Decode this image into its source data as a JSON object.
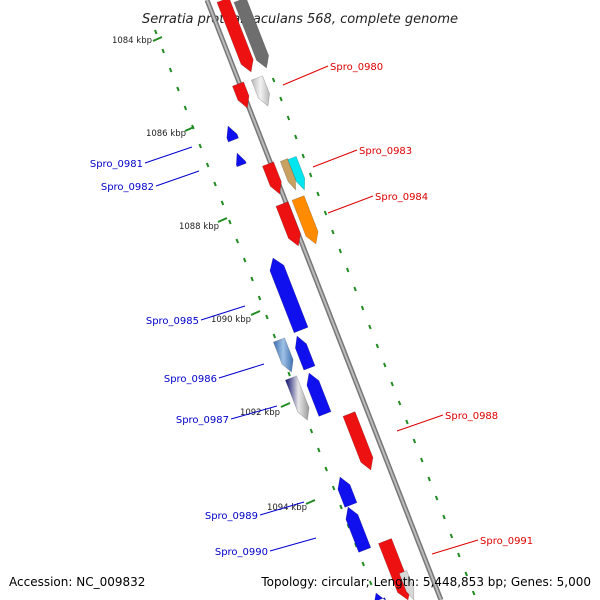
{
  "title": "Serratia proteamaculans 568, complete genome",
  "footer": {
    "accession": "Accession: NC_009832",
    "summary": "Topology: circular; Length: 5,448,853 bp; Genes: 5,000"
  },
  "colors": {
    "forward_label": "#dd0000",
    "reverse_label": "#0000cc",
    "backbone": "#888888",
    "ticks": "#228b22"
  },
  "ticks": [
    {
      "label": "1084 kbp"
    },
    {
      "label": "1086 kbp"
    },
    {
      "label": "1088 kbp"
    },
    {
      "label": "1090 kbp"
    },
    {
      "label": "1092 kbp"
    },
    {
      "label": "1094 kbp"
    }
  ],
  "gene_labels": [
    {
      "name": "Spro_0980",
      "strand": "forward"
    },
    {
      "name": "Spro_0981",
      "strand": "reverse"
    },
    {
      "name": "Spro_0982",
      "strand": "reverse"
    },
    {
      "name": "Spro_0983",
      "strand": "forward"
    },
    {
      "name": "Spro_0984",
      "strand": "forward"
    },
    {
      "name": "Spro_0985",
      "strand": "reverse"
    },
    {
      "name": "Spro_0986",
      "strand": "reverse"
    },
    {
      "name": "Spro_0987",
      "strand": "reverse"
    },
    {
      "name": "Spro_0988",
      "strand": "forward"
    },
    {
      "name": "Spro_0989",
      "strand": "reverse"
    },
    {
      "name": "Spro_0990",
      "strand": "reverse"
    },
    {
      "name": "Spro_0991",
      "strand": "forward"
    }
  ]
}
